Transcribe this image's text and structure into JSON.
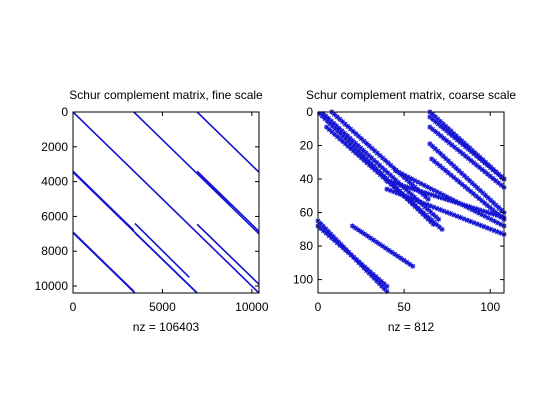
{
  "colors": {
    "marker": "#1414d2",
    "axis": "#000000",
    "background": "#ffffff"
  },
  "chart_data": [
    {
      "type": "scatter",
      "title": "Schur complement matrix, fine scale",
      "xlabel": "nz = 106403",
      "xlim": [
        0,
        10400
      ],
      "ylim": [
        0,
        10400
      ],
      "y_reversed": true,
      "xticks": [
        0,
        5000,
        10000
      ],
      "yticks": [
        0,
        2000,
        4000,
        6000,
        8000,
        10000
      ],
      "series": [
        {
          "x": [
            [
              0,
              3460
            ],
            [
              0,
              10400
            ],
            [
              0,
              3400
            ],
            [
              3400,
              10400
            ],
            [
              0,
              6940
            ],
            [
              6940,
              10400
            ],
            [
              3460,
              6940
            ],
            [
              6940,
              10400
            ],
            [
              3460,
              6500
            ],
            [
              6940,
              10400
            ],
            [
              0,
              3400
            ],
            [
              6940,
              8800
            ]
          ],
          "y": [
            [
              6940,
              10400
            ],
            [
              0,
              10400
            ],
            [
              3400,
              6800
            ],
            [
              0,
              7000
            ],
            [
              3460,
              10400
            ],
            [
              0,
              3460
            ],
            [
              6940,
              10400
            ],
            [
              3400,
              6860
            ],
            [
              6400,
              9500
            ],
            [
              6450,
              9900
            ],
            [
              6900,
              10300
            ],
            [
              3460,
              5400
            ]
          ]
        }
      ]
    },
    {
      "type": "scatter",
      "title": "Schur complement matrix, coarse scale",
      "xlabel": "nz = 812",
      "xlim": [
        0,
        108
      ],
      "ylim": [
        0,
        108
      ],
      "y_reversed": true,
      "xticks": [
        0,
        50,
        100
      ],
      "yticks": [
        0,
        20,
        40,
        60,
        80,
        100
      ],
      "series": [
        {
          "x": [
            [
              1,
              67
            ],
            [
              3,
              70
            ],
            [
              5,
              72
            ],
            [
              8,
              64
            ],
            [
              0,
              40
            ],
            [
              0,
              40
            ],
            [
              20,
              55
            ],
            [
              45,
              108
            ],
            [
              40,
              108
            ],
            [
              40,
              108
            ],
            [
              65,
              108
            ],
            [
              65,
              108
            ],
            [
              65,
              108
            ],
            [
              65,
              108
            ],
            [
              66,
              108
            ]
          ],
          "y": [
            [
              1,
              67
            ],
            [
              1,
              64
            ],
            [
              9,
              70
            ],
            [
              0,
              52
            ],
            [
              65,
              107
            ],
            [
              68,
              104
            ],
            [
              68,
              92
            ],
            [
              35,
              68
            ],
            [
              41,
              63
            ],
            [
              46,
              73
            ],
            [
              0,
              40
            ],
            [
              3,
              40
            ],
            [
              9,
              45
            ],
            [
              19,
              60
            ],
            [
              28,
              64
            ]
          ]
        }
      ]
    }
  ]
}
